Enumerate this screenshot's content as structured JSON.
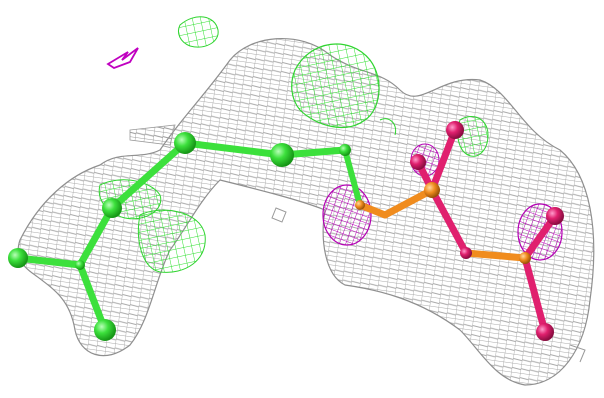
{
  "scene": {
    "background": "#ffffff",
    "colors": {
      "mesh_gray": "#9a9a9a",
      "mesh_green": "#33e633",
      "mesh_magenta": "#b400b4",
      "carbon_green": "#3ce03c",
      "phosphorus_orange": "#f08c1e",
      "oxygen_red": "#e0206e",
      "small_magenta_fragment": "#c000c0"
    },
    "elements": [
      "electron-density-mesh",
      "green-difference-mesh",
      "magenta-mesh",
      "ball-and-stick-molecule"
    ]
  }
}
